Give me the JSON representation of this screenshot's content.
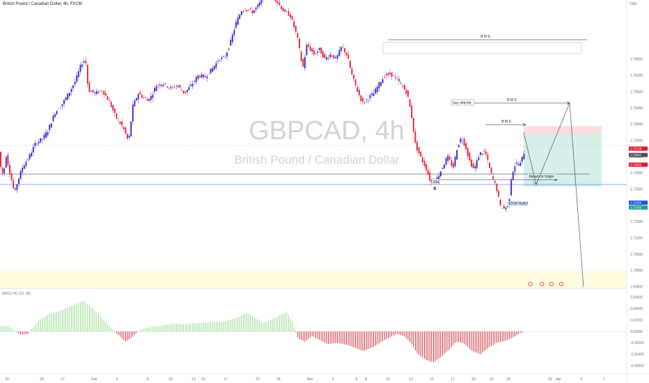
{
  "header": {
    "symbol_title": "British Pound / Canadian Dollar, 4h, FXCM",
    "currency_badge": "CAD"
  },
  "watermark": {
    "ticker": "GBPCAD, 4h",
    "name": "British Pound / Canadian Dollar"
  },
  "colors": {
    "up": "#2f1cc9",
    "down": "#e8142a",
    "hist_pos": "#8fd88a",
    "hist_neg": "#c4212b",
    "target_zone": "#d6efea",
    "stop_zone": "#fbdede",
    "lower_zone": "#fffbe0"
  },
  "chart_data": {
    "type": "candlestick",
    "title": "GBPCAD, 4h",
    "subtitle": "British Pound / Canadian Dollar",
    "ylim": [
      1.6945,
      1.7832
    ],
    "y_ticks": [
      "1.76500",
      "1.76000",
      "1.75500",
      "1.75000",
      "1.74500",
      "1.74000",
      "1.73500",
      "1.73000",
      "1.72500",
      "1.72000",
      "1.71500",
      "1.71000",
      "1.70500",
      "1.70000",
      "1.69500"
    ],
    "x_ticks": [
      "20",
      "25",
      "27",
      "Feb",
      "6",
      "8",
      "10",
      "13",
      "15",
      "17",
      "22",
      "24",
      "Mar",
      "3",
      "6",
      "8",
      "10",
      "13",
      "15",
      "17",
      "20",
      "22",
      "24",
      "29",
      "Apr",
      "5",
      "7"
    ],
    "price_tags": [
      {
        "label": "1.73746",
        "value": 1.73746,
        "color": "#e8142a"
      },
      {
        "label": "1.73551",
        "value": 1.73551,
        "color": "#4a4e5a"
      },
      {
        "label": "1.73253",
        "value": 1.73253,
        "color": "#e8142a"
      },
      {
        "label": "1.72084",
        "value": 1.72084,
        "color": "#1e53e5"
      },
      {
        "label": "1.71936",
        "value": 1.71936,
        "color": "#1aa29a"
      }
    ],
    "annotations": {
      "bms_top": "B M S",
      "bms_mid": "B M S",
      "bms_low": "B M S",
      "buy_stop_liq": "buy..stop liq",
      "ssl": "SSL",
      "x_mark": "X",
      "return_to_origin": "Return to Origin",
      "stop_hunt": "STOP HUNT"
    },
    "macd": {
      "label": "MACD 4C (12, 26)",
      "ylim": [
        -0.0061,
        0.0061
      ],
      "y_ticks": [
        "0.00600",
        "0.00400",
        "0.00200",
        "0.00000",
        "-0.00200",
        "-0.00400",
        "-0.00600"
      ]
    }
  }
}
